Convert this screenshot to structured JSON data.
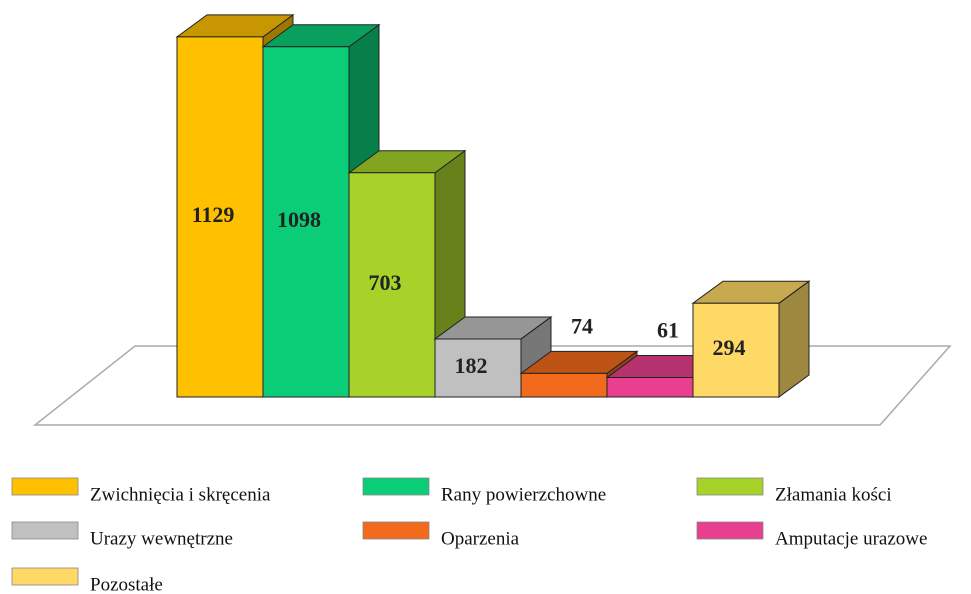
{
  "chart_data": {
    "type": "bar3d",
    "categories": [
      "Zwichnięcia i skręcenia",
      "Rany powierzchowne",
      "Złamania kości",
      "Urazy wewnętrzne",
      "Oparzenia",
      "Amputacje urazowe",
      "Pozostałe"
    ],
    "values": [
      1129,
      1098,
      703,
      182,
      74,
      61,
      294
    ],
    "colors": [
      "#FFC000",
      "#0BCD77",
      "#A6D22A",
      "#C0C0C0",
      "#F26A1B",
      "#E8408E",
      "#FFD966"
    ]
  }
}
